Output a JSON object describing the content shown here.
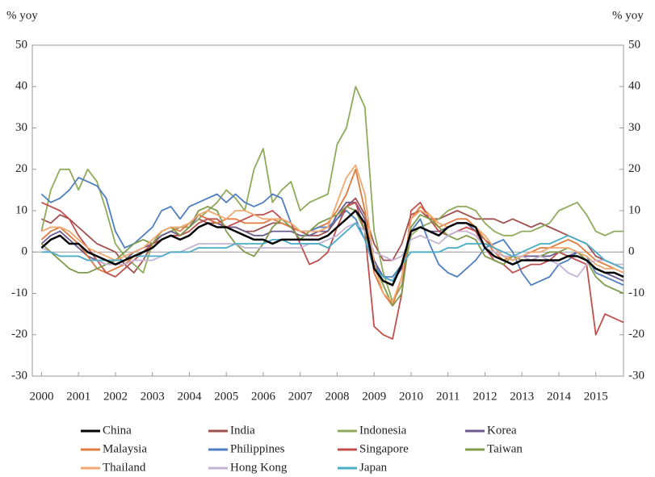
{
  "chart_data": {
    "type": "line",
    "ylabel": "% yoy",
    "y2label": "% yoy",
    "xlim": [
      1999.75,
      2015.75
    ],
    "xticks": [
      2000,
      2001,
      2002,
      2003,
      2004,
      2005,
      2006,
      2007,
      2008,
      2009,
      2010,
      2011,
      2012,
      2013,
      2014,
      2015
    ],
    "ylim": [
      -30,
      50
    ],
    "yticks": [
      -30,
      -20,
      -10,
      0,
      10,
      20,
      30,
      40,
      50
    ],
    "y2lim": [
      -30,
      50
    ],
    "y2ticks": [
      -30,
      -20,
      -10,
      0,
      10,
      20,
      30,
      40,
      50
    ],
    "x": [
      2000,
      2000.25,
      2000.5,
      2000.75,
      2001,
      2001.25,
      2001.5,
      2001.75,
      2002,
      2002.25,
      2002.5,
      2002.75,
      2003,
      2003.25,
      2003.5,
      2003.75,
      2004,
      2004.25,
      2004.5,
      2004.75,
      2005,
      2005.25,
      2005.5,
      2005.75,
      2006,
      2006.25,
      2006.5,
      2006.75,
      2007,
      2007.25,
      2007.5,
      2007.75,
      2008,
      2008.25,
      2008.5,
      2008.75,
      2009,
      2009.25,
      2009.5,
      2009.75,
      2010,
      2010.25,
      2010.5,
      2010.75,
      2011,
      2011.25,
      2011.5,
      2011.75,
      2012,
      2012.25,
      2012.5,
      2012.75,
      2013,
      2013.25,
      2013.5,
      2013.75,
      2014,
      2014.25,
      2014.5,
      2014.75,
      2015,
      2015.25,
      2015.5,
      2015.75
    ],
    "series": [
      {
        "name": "India",
        "color": "#a0504e",
        "values": [
          8,
          7,
          9,
          8,
          6,
          4,
          2,
          1,
          0,
          -3,
          -5,
          -2,
          2,
          4,
          5,
          6,
          6,
          8,
          7,
          7,
          6,
          6,
          5,
          5,
          6,
          7,
          7,
          6,
          5,
          4,
          4,
          5,
          8,
          11,
          13,
          9,
          2,
          -2,
          -2,
          2,
          9,
          10,
          8,
          8,
          9,
          10,
          9,
          8,
          8,
          8,
          7,
          8,
          7,
          6,
          7,
          6,
          5,
          4,
          3,
          2,
          -1,
          -2,
          -3,
          -4
        ]
      },
      {
        "name": "Indonesia",
        "color": "#8faa5a",
        "values": [
          5,
          15,
          20,
          20,
          15,
          20,
          17,
          10,
          2,
          -1,
          -3,
          -5,
          2,
          4,
          5,
          6,
          6,
          8,
          10,
          12,
          15,
          13,
          10,
          20,
          25,
          12,
          15,
          17,
          10,
          12,
          13,
          14,
          26,
          30,
          40,
          35,
          5,
          -5,
          -12,
          -8,
          4,
          6,
          7,
          8,
          10,
          11,
          11,
          10,
          7,
          5,
          4,
          4,
          5,
          5,
          6,
          7,
          10,
          11,
          12,
          9,
          5,
          4,
          5,
          5
        ]
      },
      {
        "name": "Korea",
        "color": "#6a5a8f",
        "values": [
          2,
          4,
          5,
          3,
          1,
          -1,
          -2,
          -3,
          -3,
          -2,
          0,
          1,
          2,
          4,
          5,
          4,
          6,
          9,
          8,
          7,
          6,
          6,
          5,
          4,
          4,
          5,
          5,
          5,
          4,
          4,
          5,
          5,
          9,
          12,
          12,
          8,
          -2,
          -6,
          -7,
          -4,
          5,
          6,
          5,
          5,
          6,
          7,
          7,
          5,
          3,
          1,
          -1,
          -2,
          -1,
          -1,
          -1,
          -1,
          0,
          -1,
          0,
          -2,
          -4,
          -5,
          -6,
          -7
        ]
      },
      {
        "name": "Malaysia",
        "color": "#e07b40",
        "values": [
          3,
          5,
          6,
          4,
          2,
          -1,
          -4,
          -5,
          -4,
          -3,
          -1,
          0,
          2,
          5,
          6,
          5,
          7,
          9,
          8,
          7,
          8,
          8,
          7,
          7,
          7,
          8,
          7,
          6,
          5,
          5,
          6,
          7,
          10,
          14,
          20,
          10,
          -5,
          -10,
          -13,
          -6,
          8,
          11,
          9,
          6,
          7,
          8,
          8,
          6,
          3,
          0,
          -2,
          -1,
          -1,
          0,
          1,
          1,
          2,
          3,
          2,
          0,
          -2,
          -3,
          -4,
          -5
        ]
      },
      {
        "name": "Philippines",
        "color": "#4f7fc0",
        "values": [
          14,
          12,
          13,
          15,
          18,
          17,
          16,
          13,
          5,
          1,
          2,
          4,
          6,
          10,
          11,
          8,
          11,
          12,
          13,
          14,
          12,
          14,
          12,
          11,
          12,
          14,
          13,
          7,
          5,
          5,
          6,
          6,
          8,
          10,
          8,
          3,
          -3,
          -6,
          -6,
          -3,
          5,
          8,
          2,
          -3,
          -5,
          -6,
          -4,
          -2,
          1,
          2,
          3,
          0,
          -5,
          -8,
          -7,
          -6,
          -3,
          -2,
          0,
          -1,
          -5,
          -6,
          -7,
          -8
        ]
      },
      {
        "name": "Singapore",
        "color": "#c0504d",
        "values": [
          12,
          11,
          10,
          8,
          4,
          1,
          -2,
          -5,
          -6,
          -4,
          -2,
          0,
          2,
          3,
          4,
          4,
          5,
          7,
          8,
          8,
          6,
          7,
          8,
          9,
          9,
          10,
          8,
          7,
          2,
          -3,
          -2,
          0,
          6,
          11,
          12,
          5,
          -18,
          -20,
          -21,
          -10,
          10,
          12,
          8,
          5,
          4,
          5,
          6,
          5,
          1,
          -2,
          -3,
          -5,
          -4,
          -3,
          -3,
          -2,
          0,
          -1,
          -2,
          -3,
          -20,
          -15,
          -16,
          -17
        ]
      },
      {
        "name": "Taiwan",
        "color": "#7f9a48",
        "values": [
          2,
          0,
          -2,
          -4,
          -5,
          -5,
          -4,
          -3,
          -2,
          0,
          2,
          3,
          2,
          5,
          6,
          4,
          6,
          10,
          11,
          10,
          5,
          2,
          0,
          -1,
          2,
          6,
          8,
          6,
          3,
          5,
          7,
          8,
          9,
          11,
          10,
          5,
          -3,
          -8,
          -13,
          -10,
          6,
          9,
          8,
          6,
          4,
          3,
          4,
          3,
          -1,
          -2,
          -3,
          -1,
          -2,
          -2,
          -1,
          0,
          0,
          1,
          0,
          -2,
          -6,
          -8,
          -9,
          -10
        ]
      },
      {
        "name": "Thailand",
        "color": "#f0a870",
        "values": [
          5,
          6,
          6,
          5,
          3,
          1,
          0,
          -1,
          -2,
          -1,
          0,
          1,
          3,
          5,
          6,
          6,
          7,
          9,
          10,
          9,
          8,
          10,
          10,
          9,
          8,
          8,
          8,
          7,
          5,
          5,
          5,
          6,
          12,
          18,
          21,
          14,
          -3,
          -10,
          -12,
          -6,
          8,
          10,
          9,
          7,
          6,
          7,
          7,
          6,
          4,
          1,
          -1,
          -2,
          -1,
          0,
          0,
          1,
          1,
          1,
          0,
          -1,
          -3,
          -4,
          -4,
          -5
        ]
      },
      {
        "name": "Hong Kong",
        "color": "#c4b4d4",
        "values": [
          1,
          0,
          -1,
          -1,
          -1,
          -2,
          -2,
          -3,
          -3,
          -3,
          -2,
          -2,
          -2,
          -1,
          0,
          0,
          1,
          2,
          2,
          2,
          2,
          2,
          1,
          1,
          1,
          1,
          1,
          1,
          1,
          2,
          2,
          3,
          4,
          6,
          7,
          5,
          0,
          -1,
          -2,
          -1,
          3,
          4,
          3,
          2,
          4,
          5,
          5,
          4,
          1,
          0,
          -1,
          -1,
          -1,
          -2,
          -1,
          -2,
          -3,
          -5,
          -6,
          -3,
          -2,
          -2,
          -3,
          -3
        ]
      },
      {
        "name": "Japan",
        "color": "#4aacc6",
        "values": [
          0,
          0,
          -1,
          -1,
          -1,
          -2,
          -2,
          -2,
          -2,
          -2,
          -1,
          -1,
          -1,
          -1,
          0,
          0,
          0,
          1,
          1,
          1,
          1,
          2,
          2,
          2,
          2,
          3,
          3,
          2,
          2,
          2,
          2,
          1,
          3,
          5,
          7,
          3,
          -4,
          -6,
          -7,
          -3,
          0,
          0,
          0,
          0,
          1,
          1,
          2,
          2,
          2,
          1,
          0,
          -1,
          0,
          1,
          2,
          2,
          3,
          4,
          3,
          2,
          0,
          -2,
          -3,
          -4
        ]
      },
      {
        "name": "China",
        "color": "#000000",
        "values": [
          1,
          3,
          4,
          2,
          2,
          0,
          -1,
          -2,
          -3,
          -2,
          -1,
          0,
          1,
          3,
          4,
          3,
          4,
          6,
          7,
          6,
          6,
          5,
          4,
          3,
          3,
          2,
          3,
          3,
          3,
          3,
          3,
          4,
          6,
          8,
          10,
          7,
          -4,
          -7,
          -8,
          -3,
          5,
          6,
          5,
          4,
          6,
          7,
          7,
          6,
          1,
          -1,
          -2,
          -3,
          -2,
          -2,
          -2,
          -2,
          -2,
          -1,
          -1,
          -2,
          -4,
          -5,
          -5,
          -6
        ]
      }
    ]
  }
}
